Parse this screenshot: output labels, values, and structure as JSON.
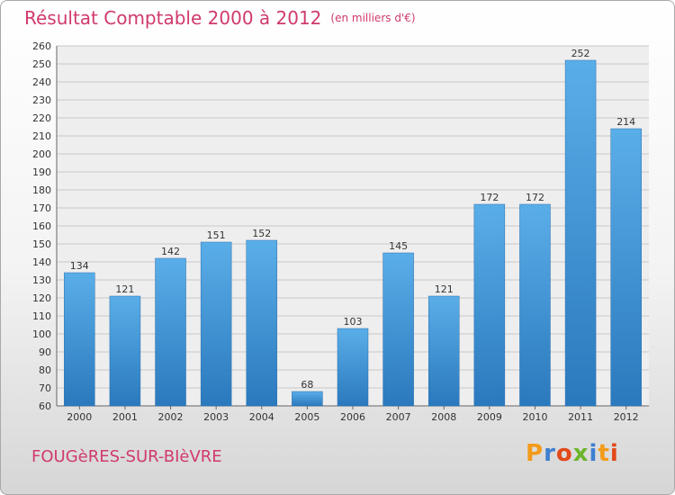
{
  "chart_data": {
    "type": "bar",
    "title": "Résultat Comptable 2000 à 2012",
    "subtitle": "(en milliers d'€)",
    "categories": [
      "2000",
      "2001",
      "2002",
      "2003",
      "2004",
      "2005",
      "2006",
      "2007",
      "2008",
      "2009",
      "2010",
      "2011",
      "2012"
    ],
    "values": [
      134,
      121,
      142,
      151,
      152,
      68,
      103,
      145,
      121,
      172,
      172,
      252,
      214
    ],
    "data_labels": [
      "134",
      "121",
      "142",
      "151",
      "152",
      "68",
      "103",
      "145",
      "121",
      "172",
      "172",
      "252",
      "214"
    ],
    "xlabel": "",
    "ylabel": "",
    "ylim": [
      60,
      260
    ],
    "yticks": [
      60,
      70,
      80,
      90,
      100,
      110,
      120,
      130,
      140,
      150,
      160,
      170,
      180,
      190,
      200,
      210,
      220,
      230,
      240,
      250,
      260
    ],
    "grid": true,
    "bar_color": "#3d8fd6"
  },
  "footer": {
    "commune": "FOUGèRES-SUR-BIèVRE",
    "logo_text": "Proxiti",
    "logo_colors": [
      "#f39b1a",
      "#3f7fd0",
      "#e3491a",
      "#6bb52a",
      "#3f7fd0",
      "#f39b1a",
      "#e3491a"
    ]
  }
}
